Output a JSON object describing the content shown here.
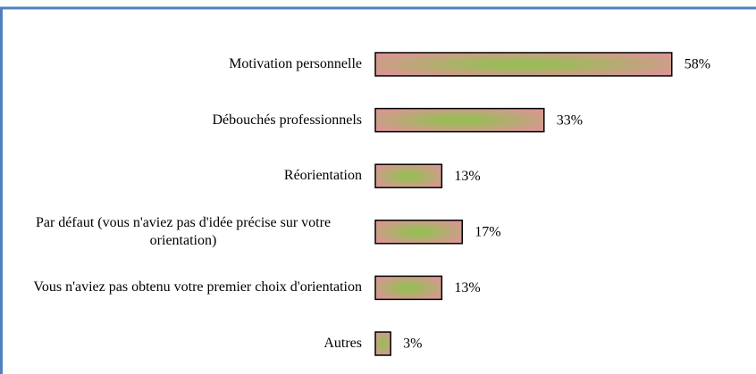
{
  "chart_data": {
    "type": "bar",
    "orientation": "horizontal",
    "categories": [
      "Motivation personnelle",
      "Débouchés professionnels",
      "Réorientation",
      "Par défaut (vous n'aviez pas d'idée précise sur votre orientation)",
      "Vous n'aviez pas obtenu votre premier choix d'orientation",
      "Autres"
    ],
    "values": [
      58,
      33,
      13,
      17,
      13,
      3
    ],
    "value_labels": [
      "58%",
      "33%",
      "13%",
      "17%",
      "13%",
      "3%"
    ],
    "colors": [
      "#d99694",
      "#9bbb59"
    ]
  }
}
